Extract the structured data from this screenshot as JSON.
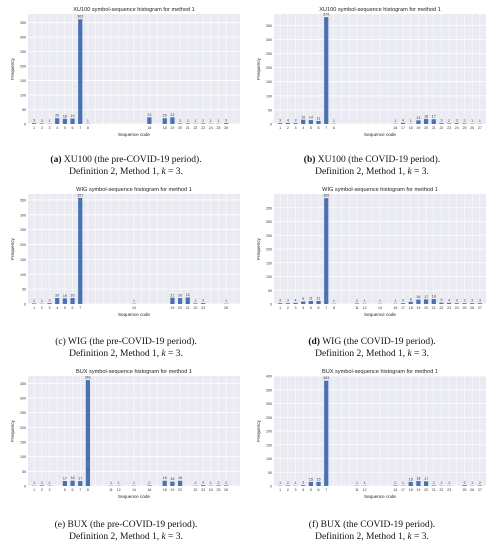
{
  "chart_data": [
    {
      "id": "a",
      "type": "bar",
      "title": "XU100 symbol-sequence histogram for method 1",
      "xlabel": "Sequence code",
      "ylabel": "Frequency",
      "ylim": [
        0,
        380
      ],
      "yticks": [
        0,
        50,
        100,
        150,
        200,
        250,
        300,
        350
      ],
      "grid": true,
      "caption": {
        "letter": "(a)",
        "line1": " XU100 (the pre-COVID-19 period).",
        "line2_pre": "Definition 2, Method 1, ",
        "line2_k": "k",
        "line2_post": " = 3."
      },
      "categories": [
        "1",
        "2",
        "3",
        "4",
        "5",
        "6",
        "7",
        "8",
        "16",
        "18",
        "19",
        "20",
        "21",
        "22",
        "23",
        "24",
        "25",
        "26"
      ],
      "values": [
        3,
        2,
        1,
        20,
        18,
        19,
        362,
        1,
        23,
        20,
        23,
        2,
        2,
        1,
        2,
        1,
        1,
        3
      ],
      "labels": [
        "3",
        "2",
        "1",
        "20",
        "18",
        "19",
        "362",
        "1",
        "23",
        "20",
        "23",
        "2",
        "2",
        "1",
        "2",
        "1",
        "1",
        "3"
      ]
    },
    {
      "id": "b",
      "type": "bar",
      "title": "XU100 symbol-sequence histogram for method 1",
      "xlabel": "Sequence code",
      "ylabel": "Frequency",
      "ylim": [
        0,
        390
      ],
      "yticks": [
        0,
        50,
        100,
        150,
        200,
        250,
        300,
        350
      ],
      "grid": true,
      "caption": {
        "letter": "(b)",
        "line1": " XU100 (the COVID-19 period).",
        "line2_pre": "Definition 2, Method 1, ",
        "line2_k": "k",
        "line2_post": " = 3."
      },
      "categories": [
        "1",
        "2",
        "3",
        "4",
        "5",
        "6",
        "7",
        "8",
        "16",
        "17",
        "18",
        "19",
        "20",
        "21",
        "22",
        "23",
        "24",
        "25",
        "26",
        "27"
      ],
      "values": [
        3,
        4,
        3,
        15,
        14,
        11,
        379,
        1,
        1,
        4,
        1,
        13,
        18,
        17,
        3,
        2,
        3,
        2,
        1,
        1
      ],
      "labels": [
        "3",
        "4",
        "3",
        "15",
        "14",
        "11",
        "379",
        "1",
        "1",
        "4",
        "1",
        "13",
        "18",
        "17",
        "3",
        "2",
        "3",
        "2",
        "1",
        "1"
      ]
    },
    {
      "id": "c",
      "type": "bar",
      "title": "WIG symbol-sequence histogram for method 1",
      "xlabel": "Sequence code",
      "ylabel": "Frequency",
      "ylim": [
        0,
        370
      ],
      "yticks": [
        0,
        50,
        100,
        150,
        200,
        250,
        300,
        350
      ],
      "grid": true,
      "caption": {
        "letter": "(c)",
        "line1": " WIG (the pre-COVID-19 period).",
        "line2_pre": "Definition 2, Method 1, ",
        "line2_k": "k",
        "line2_post": " = 3."
      },
      "categories": [
        "1",
        "2",
        "3",
        "4",
        "5",
        "6",
        "7",
        "14",
        "19",
        "20",
        "21",
        "22",
        "23",
        "26"
      ],
      "values": [
        2,
        1,
        3,
        20,
        19,
        20,
        357,
        1,
        21,
        20,
        22,
        2,
        3,
        1
      ],
      "labels": [
        "2",
        "1",
        "3",
        "20",
        "19",
        "20",
        "357",
        "1",
        "21",
        "20",
        "22",
        "2",
        "3",
        "1"
      ]
    },
    {
      "id": "d",
      "type": "bar",
      "title": "WIG symbol-sequence histogram for method 1",
      "xlabel": "Sequence code",
      "ylabel": "Frequency",
      "ylim": [
        0,
        400
      ],
      "yticks": [
        0,
        50,
        100,
        150,
        200,
        250,
        300,
        350
      ],
      "grid": true,
      "caption": {
        "letter": "(d)",
        "line1": " WIG (the COVID-19 period).",
        "line2_pre": "Definition 2, Method 1, ",
        "line2_k": "k",
        "line2_post": " = 3."
      },
      "categories": [
        "1",
        "2",
        "3",
        "4",
        "5",
        "6",
        "7",
        "8",
        "11",
        "12",
        "14",
        "16",
        "17",
        "18",
        "19",
        "20",
        "21",
        "22",
        "23",
        "24",
        "25",
        "26",
        "27"
      ],
      "values": [
        3,
        3,
        4,
        9,
        11,
        11,
        385,
        1,
        2,
        1,
        1,
        1,
        3,
        8,
        16,
        17,
        18,
        5,
        4,
        3,
        3,
        3,
        3
      ],
      "labels": [
        "3",
        "3",
        "4",
        "9",
        "11",
        "11",
        "385",
        "1",
        "2",
        "1",
        "1",
        "1",
        "3",
        "8",
        "16",
        "17",
        "18",
        "5",
        "4",
        "3",
        "3",
        "3",
        "3"
      ]
    },
    {
      "id": "e",
      "type": "bar",
      "title": "BUX symbol-sequence histogram for method 1",
      "xlabel": "Sequence code",
      "ylabel": "Frequency",
      "ylim": [
        0,
        375
      ],
      "yticks": [
        0,
        50,
        100,
        150,
        200,
        250,
        300,
        350
      ],
      "grid": true,
      "caption": {
        "letter": "(e)",
        "line1": " BUX (the pre-COVID-19 period).",
        "line2_pre": "Definition 2, Method 1, ",
        "line2_k": "k",
        "line2_post": " = 3."
      },
      "categories": [
        "1",
        "2",
        "3",
        "5",
        "6",
        "7",
        "8",
        "11",
        "12",
        "14",
        "16",
        "18",
        "19",
        "20",
        "22",
        "23",
        "24",
        "25",
        "26"
      ],
      "values": [
        1,
        2,
        1,
        17,
        18,
        17,
        361,
        1,
        1,
        1,
        2,
        18,
        15,
        18,
        1,
        3,
        1,
        2,
        2
      ],
      "labels": [
        "1",
        "2",
        "1",
        "17",
        "18",
        "17",
        "361",
        "1",
        "1",
        "1",
        "2",
        "18",
        "15",
        "18",
        "1",
        "3",
        "1",
        "2",
        "2"
      ]
    },
    {
      "id": "f",
      "type": "bar",
      "title": "BUX symbol-sequence histogram for method 1",
      "xlabel": "Sequence code",
      "ylabel": "Frequency",
      "ylim": [
        0,
        400
      ],
      "yticks": [
        0,
        50,
        100,
        150,
        200,
        250,
        300,
        350,
        400
      ],
      "grid": true,
      "caption": {
        "letter": "(f)",
        "line1": " BUX (the COVID-19 period).",
        "line2_pre": "Definition 2, Method 1, ",
        "line2_k": "k",
        "line2_post": " = 3."
      },
      "categories": [
        "1",
        "2",
        "3",
        "4",
        "5",
        "6",
        "7",
        "11",
        "12",
        "16",
        "17",
        "18",
        "19",
        "20",
        "21",
        "22",
        "23",
        "25",
        "26",
        "27"
      ],
      "values": [
        1,
        2,
        1,
        3,
        15,
        15,
        383,
        1,
        1,
        2,
        1,
        15,
        18,
        17,
        2,
        1,
        1,
        3,
        1,
        2
      ],
      "labels": [
        "1",
        "2",
        "1",
        "3",
        "15",
        "15",
        "383",
        "1",
        "1",
        "2",
        "1",
        "15",
        "18",
        "17",
        "2",
        "1",
        "1",
        "3",
        "1",
        "2"
      ]
    }
  ]
}
